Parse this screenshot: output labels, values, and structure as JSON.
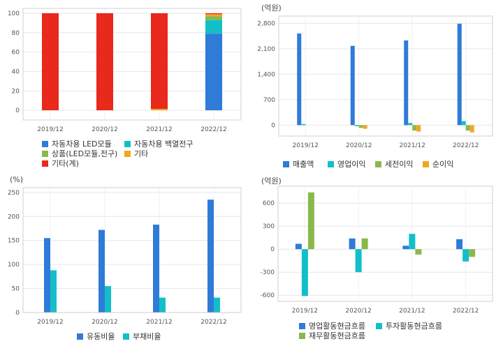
{
  "chart_data": [
    {
      "id": "composition",
      "type": "bar",
      "stacked": true,
      "unit": "",
      "categories": [
        "2019/12",
        "2020/12",
        "2021/12",
        "2022/12"
      ],
      "ylim": [
        -10,
        105
      ],
      "yticks": [
        0,
        20,
        40,
        60,
        80,
        100
      ],
      "grid": true,
      "legend_position": "bottom",
      "series": [
        {
          "name": "자동차용 LED모듈",
          "color": "#2e7bd8",
          "values": [
            0,
            0,
            0,
            79
          ]
        },
        {
          "name": "자동차용 백열전구",
          "color": "#12bfc9",
          "values": [
            0,
            0,
            0,
            14
          ]
        },
        {
          "name": "상품(LED모듈,전구)",
          "color": "#8ab84a",
          "values": [
            0,
            0,
            0,
            4
          ]
        },
        {
          "name": "기타",
          "color": "#f2a623",
          "values": [
            0,
            0,
            1.5,
            2
          ]
        },
        {
          "name": "기타(계)",
          "color": "#e8291c",
          "values": [
            100,
            100,
            98.5,
            1
          ]
        }
      ]
    },
    {
      "id": "income",
      "type": "bar",
      "unit": "(억원)",
      "categories": [
        "2019/12",
        "2020/12",
        "2021/12",
        "2022/12"
      ],
      "ylim": [
        -300,
        3000
      ],
      "yticks": [
        0,
        700,
        1400,
        2100,
        2800
      ],
      "ytick_labels": [
        "0",
        "700",
        "1,400",
        "2,100",
        "2,800"
      ],
      "grid": true,
      "legend_position": "bottom",
      "series": [
        {
          "name": "매출액",
          "color": "#2e7bd8",
          "values": [
            2520,
            2180,
            2330,
            2790
          ]
        },
        {
          "name": "영업이익",
          "color": "#12bfc9",
          "values": [
            30,
            -30,
            60,
            110
          ]
        },
        {
          "name": "세전이익",
          "color": "#8ab84a",
          "values": [
            0,
            -75,
            -150,
            -150
          ]
        },
        {
          "name": "순이익",
          "color": "#f2a623",
          "values": [
            0,
            -100,
            -180,
            -200
          ]
        }
      ]
    },
    {
      "id": "ratios",
      "type": "bar",
      "unit": "(%)",
      "categories": [
        "2019/12",
        "2020/12",
        "2021/12",
        "2022/12"
      ],
      "ylim": [
        0,
        260
      ],
      "yticks": [
        0,
        50,
        100,
        150,
        200,
        250
      ],
      "grid": true,
      "legend_position": "bottom",
      "series": [
        {
          "name": "유동비율",
          "color": "#2e7bd8",
          "values": [
            155,
            172,
            183,
            235
          ]
        },
        {
          "name": "부채비율",
          "color": "#12bfc9",
          "values": [
            88,
            55,
            31,
            31
          ]
        }
      ]
    },
    {
      "id": "cashflow",
      "type": "bar",
      "unit": "(억원)",
      "categories": [
        "2019/12",
        "2020/12",
        "2021/12",
        "2022/12"
      ],
      "ylim": [
        -680,
        820
      ],
      "yticks": [
        -600,
        -300,
        0,
        300,
        600
      ],
      "ytick_labels": [
        "-600",
        "-300",
        "0",
        "300",
        "600"
      ],
      "grid": true,
      "legend_position": "bottom",
      "series": [
        {
          "name": "영업활동현금흐름",
          "color": "#2e7bd8",
          "values": [
            70,
            140,
            45,
            130
          ]
        },
        {
          "name": "투자활동현금흐름",
          "color": "#12bfc9",
          "values": [
            -610,
            -300,
            200,
            -160
          ]
        },
        {
          "name": "재무활동현금흐름",
          "color": "#8ab84a",
          "values": [
            740,
            140,
            -70,
            -100
          ]
        }
      ]
    }
  ]
}
